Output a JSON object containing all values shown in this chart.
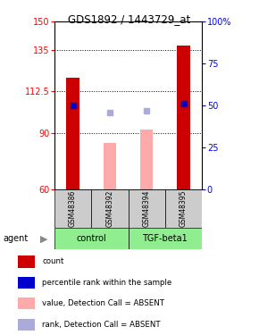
{
  "title": "GDS1892 / 1443729_at",
  "samples": [
    "GSM48386",
    "GSM48392",
    "GSM48394",
    "GSM48395"
  ],
  "bar_values_present": [
    120,
    null,
    null,
    137
  ],
  "bar_values_absent": [
    null,
    85,
    92,
    null
  ],
  "rank_present": [
    50,
    null,
    null,
    51
  ],
  "rank_absent": [
    null,
    46,
    47,
    null
  ],
  "ylim_left": [
    60,
    150
  ],
  "ylim_right": [
    0,
    100
  ],
  "yticks_left": [
    60,
    90,
    112.5,
    135,
    150
  ],
  "yticks_right": [
    0,
    25,
    50,
    75,
    100
  ],
  "hlines": [
    90,
    112.5,
    135
  ],
  "color_present": "#cc0000",
  "color_absent_bar": "#ffaaaa",
  "color_rank_present": "#0000cc",
  "color_rank_absent": "#aaaadd",
  "group_info": [
    {
      "label": "control",
      "start": 0,
      "end": 2
    },
    {
      "label": "TGF-beta1",
      "start": 2,
      "end": 4
    }
  ],
  "group_color": "#90EE90",
  "sample_box_color": "#cccccc",
  "legend_items": [
    {
      "label": "count",
      "color": "#cc0000"
    },
    {
      "label": "percentile rank within the sample",
      "color": "#0000cc"
    },
    {
      "label": "value, Detection Call = ABSENT",
      "color": "#ffaaaa"
    },
    {
      "label": "rank, Detection Call = ABSENT",
      "color": "#aaaadd"
    }
  ]
}
